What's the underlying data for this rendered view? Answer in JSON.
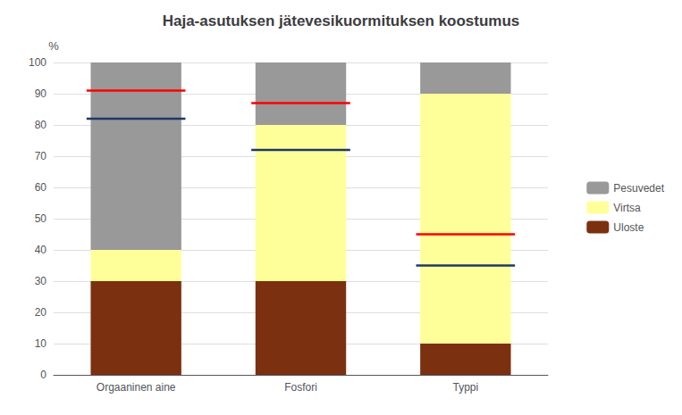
{
  "chart_data": {
    "type": "bar",
    "title": "Haja-asutuksen jätevesikuormituksen koostumus",
    "categories": [
      "Orgaaninen aine",
      "Fosfori",
      "Typpi"
    ],
    "stacked": true,
    "series": [
      {
        "name": "Uloste",
        "color": "#7B3010",
        "values": [
          30,
          30,
          10
        ]
      },
      {
        "name": "Virtsa",
        "color": "#FFFF99",
        "values": [
          10,
          50,
          80
        ]
      },
      {
        "name": "Pesuvedet",
        "color": "#999999",
        "values": [
          60,
          20,
          10
        ]
      },
      {
        "type": "segment",
        "color": "#1F3864",
        "values": [
          82,
          72,
          35
        ]
      },
      {
        "type": "segment",
        "color": "#FF0000",
        "values": [
          91,
          87,
          45
        ]
      }
    ],
    "ylabel": "%",
    "ylim": [
      0,
      100
    ],
    "yticks": [
      0,
      10,
      20,
      30,
      40,
      50,
      60,
      70,
      80,
      90,
      100
    ],
    "grid": true,
    "legend": "right"
  }
}
